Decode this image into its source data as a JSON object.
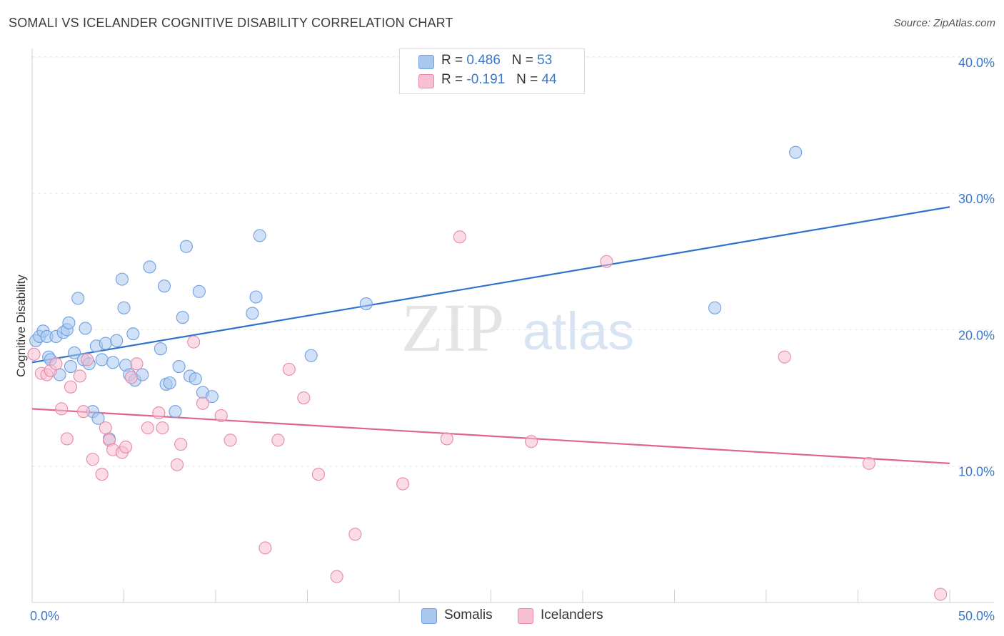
{
  "title": "SOMALI VS ICELANDER COGNITIVE DISABILITY CORRELATION CHART",
  "source": "Source: ZipAtlas.com",
  "watermark": {
    "zip": "ZIP",
    "atlas": "atlas"
  },
  "legend": [
    {
      "r_label": "R = ",
      "r_value": "0.486",
      "n_label": "N = ",
      "n_value": "53",
      "color": "#a9c8f0",
      "border": "#6f9fe0"
    },
    {
      "r_label": "R = ",
      "r_value": "-0.191",
      "n_label": "N = ",
      "n_value": "44",
      "color": "#f8c0d2",
      "border": "#e68aa8"
    }
  ],
  "bottom_legend": [
    {
      "label": "Somalis",
      "color": "#a9c8f0",
      "border": "#6f9fe0"
    },
    {
      "label": "Icelanders",
      "color": "#f8c0d2",
      "border": "#e68aa8"
    }
  ],
  "chart_data": {
    "type": "scatter",
    "title": "SOMALI VS ICELANDER COGNITIVE DISABILITY CORRELATION CHART",
    "xlabel": "",
    "ylabel": "Cognitive Disability",
    "xlim": [
      0,
      50
    ],
    "ylim": [
      0,
      40
    ],
    "x_tick_labels": [
      {
        "value": 0,
        "label": "0.0%"
      },
      {
        "value": 50,
        "label": "50.0%"
      }
    ],
    "y_tick_labels": [
      {
        "value": 10,
        "label": "10.0%"
      },
      {
        "value": 20,
        "label": "20.0%"
      },
      {
        "value": 30,
        "label": "30.0%"
      },
      {
        "value": 40,
        "label": "40.0%"
      }
    ],
    "grid": true,
    "series": [
      {
        "name": "Somalis",
        "color": "#6f9fe0",
        "fill": "#a9c8f0",
        "line_color": "#2f72cc",
        "trend": [
          [
            0,
            17.6
          ],
          [
            50,
            29.0
          ]
        ],
        "points": [
          [
            0.2,
            19.2
          ],
          [
            0.4,
            19.5
          ],
          [
            0.6,
            19.9
          ],
          [
            0.8,
            19.5
          ],
          [
            0.9,
            18.0
          ],
          [
            1.0,
            17.8
          ],
          [
            1.3,
            19.5
          ],
          [
            1.5,
            16.7
          ],
          [
            1.7,
            19.8
          ],
          [
            1.9,
            20.0
          ],
          [
            2.0,
            20.5
          ],
          [
            2.1,
            17.3
          ],
          [
            2.3,
            18.3
          ],
          [
            2.5,
            22.3
          ],
          [
            2.8,
            17.8
          ],
          [
            2.9,
            20.1
          ],
          [
            3.1,
            17.5
          ],
          [
            3.3,
            14.0
          ],
          [
            3.5,
            18.8
          ],
          [
            3.6,
            13.5
          ],
          [
            3.8,
            17.8
          ],
          [
            4.0,
            19.0
          ],
          [
            4.2,
            12.0
          ],
          [
            4.4,
            17.6
          ],
          [
            4.6,
            19.2
          ],
          [
            4.9,
            23.7
          ],
          [
            5.0,
            21.6
          ],
          [
            5.1,
            17.4
          ],
          [
            5.3,
            16.7
          ],
          [
            5.5,
            19.7
          ],
          [
            5.6,
            16.3
          ],
          [
            6.0,
            16.7
          ],
          [
            6.4,
            24.6
          ],
          [
            7.0,
            18.6
          ],
          [
            7.2,
            23.2
          ],
          [
            7.3,
            16.0
          ],
          [
            7.5,
            16.1
          ],
          [
            7.8,
            14.0
          ],
          [
            8.0,
            17.3
          ],
          [
            8.2,
            20.9
          ],
          [
            8.4,
            26.1
          ],
          [
            8.6,
            16.6
          ],
          [
            8.9,
            16.4
          ],
          [
            9.1,
            22.8
          ],
          [
            9.3,
            15.4
          ],
          [
            9.8,
            15.1
          ],
          [
            12.0,
            21.2
          ],
          [
            12.2,
            22.4
          ],
          [
            12.4,
            26.9
          ],
          [
            15.2,
            18.1
          ],
          [
            18.2,
            21.9
          ],
          [
            37.2,
            21.6
          ],
          [
            41.6,
            33.0
          ]
        ]
      },
      {
        "name": "Icelanders",
        "color": "#e68aa8",
        "fill": "#f8c0d2",
        "line_color": "#e0648e",
        "trend": [
          [
            0,
            14.2
          ],
          [
            50,
            10.2
          ]
        ],
        "points": [
          [
            0.1,
            18.2
          ],
          [
            0.5,
            16.8
          ],
          [
            0.8,
            16.7
          ],
          [
            1.0,
            17.0
          ],
          [
            1.3,
            17.5
          ],
          [
            1.6,
            14.2
          ],
          [
            1.9,
            12.0
          ],
          [
            2.1,
            15.8
          ],
          [
            2.6,
            16.6
          ],
          [
            2.8,
            14.0
          ],
          [
            3.0,
            17.8
          ],
          [
            3.3,
            10.5
          ],
          [
            3.8,
            9.4
          ],
          [
            4.0,
            12.8
          ],
          [
            4.2,
            11.9
          ],
          [
            4.4,
            11.2
          ],
          [
            4.9,
            11.0
          ],
          [
            5.1,
            11.4
          ],
          [
            5.4,
            16.5
          ],
          [
            5.7,
            17.5
          ],
          [
            6.3,
            12.8
          ],
          [
            6.9,
            13.9
          ],
          [
            7.1,
            12.8
          ],
          [
            7.9,
            10.1
          ],
          [
            8.1,
            11.6
          ],
          [
            8.8,
            19.1
          ],
          [
            9.3,
            14.6
          ],
          [
            10.3,
            13.7
          ],
          [
            10.8,
            11.9
          ],
          [
            12.7,
            4.0
          ],
          [
            13.4,
            11.9
          ],
          [
            14.0,
            17.1
          ],
          [
            14.8,
            15.0
          ],
          [
            15.6,
            9.4
          ],
          [
            16.6,
            1.9
          ],
          [
            17.6,
            5.0
          ],
          [
            20.2,
            8.7
          ],
          [
            22.6,
            12.0
          ],
          [
            23.3,
            26.8
          ],
          [
            27.2,
            11.8
          ],
          [
            31.3,
            25.0
          ],
          [
            41.0,
            18.0
          ],
          [
            45.6,
            10.2
          ],
          [
            49.5,
            0.6
          ]
        ]
      }
    ]
  }
}
